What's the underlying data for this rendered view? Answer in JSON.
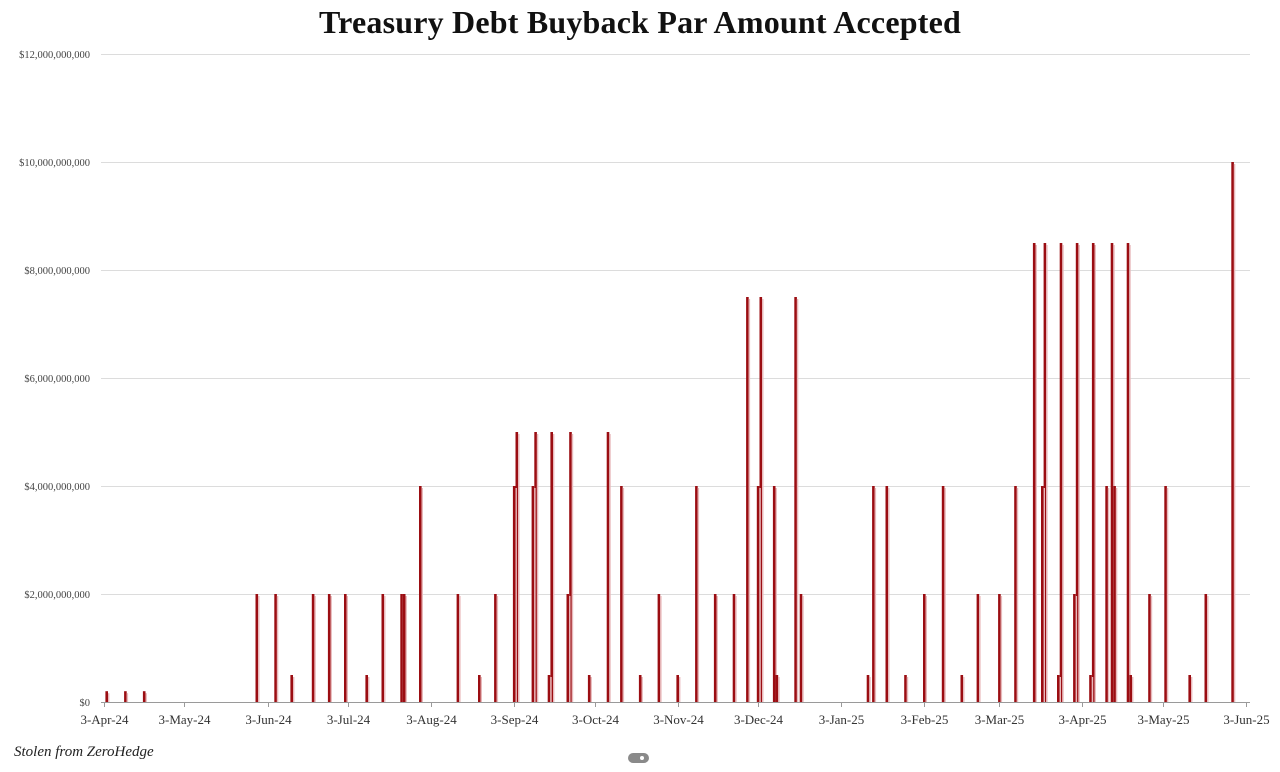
{
  "chart_data": {
    "type": "bar",
    "title": "Treasury Debt Buyback Par Amount Accepted",
    "xlabel": "",
    "ylabel": "",
    "ylim": [
      0,
      12000000000
    ],
    "y_ticks": [
      0,
      2000000000,
      4000000000,
      6000000000,
      8000000000,
      10000000000,
      12000000000
    ],
    "y_tick_labels": [
      "$0",
      "$2,000,000,000",
      "$4,000,000,000",
      "$6,000,000,000",
      "$8,000,000,000",
      "$10,000,000,000",
      "$12,000,000,000"
    ],
    "x_range": [
      "2024-04-03",
      "2025-06-03"
    ],
    "x_ticks": [
      "2024-04-03",
      "2024-05-03",
      "2024-06-03",
      "2024-07-03",
      "2024-08-03",
      "2024-09-03",
      "2024-10-03",
      "2024-11-03",
      "2024-12-03",
      "2025-01-03",
      "2025-02-03",
      "2025-03-03",
      "2025-04-03",
      "2025-05-03",
      "2025-06-03"
    ],
    "x_tick_labels": [
      "3-Apr-24",
      "3-May-24",
      "3-Jun-24",
      "3-Jul-24",
      "3-Aug-24",
      "3-Sep-24",
      "3-Oct-24",
      "3-Nov-24",
      "3-Dec-24",
      "3-Jan-25",
      "3-Feb-25",
      "3-Mar-25",
      "3-Apr-25",
      "3-May-25",
      "3-Jun-25"
    ],
    "grid": true,
    "bar_color": "#9b0d12",
    "dates": [
      "2024-04-04",
      "2024-04-11",
      "2024-04-18",
      "2024-05-30",
      "2024-06-06",
      "2024-06-12",
      "2024-06-20",
      "2024-06-26",
      "2024-07-02",
      "2024-07-10",
      "2024-07-16",
      "2024-07-23",
      "2024-07-24",
      "2024-07-30",
      "2024-08-13",
      "2024-08-21",
      "2024-08-27",
      "2024-09-03",
      "2024-09-04",
      "2024-09-10",
      "2024-09-11",
      "2024-09-16",
      "2024-09-17",
      "2024-09-23",
      "2024-09-24",
      "2024-10-01",
      "2024-10-08",
      "2024-10-13",
      "2024-10-20",
      "2024-10-27",
      "2024-11-03",
      "2024-11-10",
      "2024-11-17",
      "2024-11-24",
      "2024-11-29",
      "2024-12-03",
      "2024-12-04",
      "2024-12-09",
      "2024-12-10",
      "2024-12-17",
      "2024-12-19",
      "2025-01-13",
      "2025-01-15",
      "2025-01-20",
      "2025-01-27",
      "2025-02-03",
      "2025-02-10",
      "2025-02-17",
      "2025-02-23",
      "2025-03-03",
      "2025-03-09",
      "2025-03-16",
      "2025-03-19",
      "2025-03-20",
      "2025-03-25",
      "2025-03-26",
      "2025-03-31",
      "2025-04-01",
      "2025-04-06",
      "2025-04-07",
      "2025-04-12",
      "2025-04-14",
      "2025-04-15",
      "2025-04-20",
      "2025-04-21",
      "2025-04-28",
      "2025-05-04",
      "2025-05-13",
      "2025-05-19",
      "2025-05-29",
      "2025-06-03"
    ],
    "values": [
      200000000,
      200000000,
      200000000,
      2000000000,
      2000000000,
      500000000,
      2000000000,
      2000000000,
      2000000000,
      500000000,
      2000000000,
      2000000000,
      2000000000,
      4000000000,
      2000000000,
      500000000,
      2000000000,
      4000000000,
      5000000000,
      4000000000,
      5000000000,
      500000000,
      5000000000,
      2000000000,
      5000000000,
      500000000,
      5000000000,
      4000000000,
      500000000,
      2000000000,
      500000000,
      4000000000,
      2000000000,
      2000000000,
      7500000000,
      4000000000,
      7500000000,
      4000000000,
      500000000,
      7500000000,
      2000000000,
      500000000,
      4000000000,
      4000000000,
      500000000,
      2000000000,
      4000000000,
      500000000,
      2000000000,
      2000000000,
      4000000000,
      8500000000,
      4000000000,
      8500000000,
      500000000,
      8500000000,
      2000000000,
      8500000000,
      500000000,
      8500000000,
      4000000000,
      8500000000,
      4000000000,
      8500000000,
      500000000,
      2000000000,
      4000000000,
      500000000,
      2000000000,
      10000000000,
      0
    ]
  },
  "watermark": "Stolen from ZeroHedge"
}
